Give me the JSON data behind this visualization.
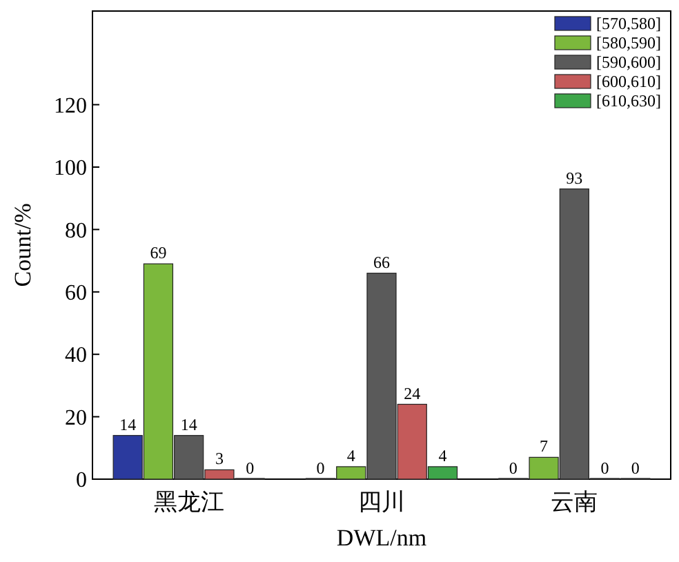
{
  "chart_data": {
    "type": "bar",
    "xlabel": "DWL/nm",
    "ylabel": "Count/%",
    "categories": [
      "黑龙江",
      "四川",
      "云南"
    ],
    "series": [
      {
        "name": "[570,580]",
        "color": "#2b3a9e",
        "values": [
          14,
          0,
          0
        ]
      },
      {
        "name": "[580,590]",
        "color": "#7cb83c",
        "values": [
          69,
          4,
          7
        ]
      },
      {
        "name": "[590,600]",
        "color": "#5a5a5a",
        "values": [
          14,
          66,
          93
        ]
      },
      {
        "name": "[600,610]",
        "color": "#c45a5a",
        "values": [
          3,
          24,
          0
        ]
      },
      {
        "name": "[610,630]",
        "color": "#3ea64a",
        "values": [
          0,
          4,
          0
        ]
      }
    ],
    "ylim": [
      0,
      150
    ],
    "yticks": [
      0,
      20,
      40,
      60,
      80,
      100,
      120
    ],
    "data_labels": true,
    "legend": "top right",
    "grid": false
  }
}
